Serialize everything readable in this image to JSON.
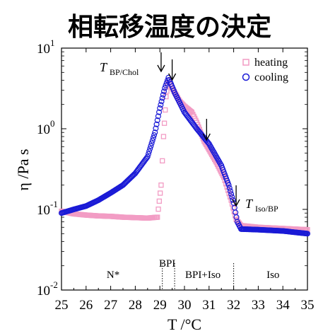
{
  "title": "相転移温度の決定",
  "chart_data": {
    "type": "scatter",
    "xlabel": "T /°C",
    "ylabel": "η /Pa s",
    "xlim": [
      25,
      35
    ],
    "ylim": [
      0.01,
      10
    ],
    "yscale": "log",
    "x_ticks": [
      "25",
      "26",
      "27",
      "28",
      "29",
      "30",
      "31",
      "32",
      "33",
      "34",
      "35"
    ],
    "y_ticks": [
      {
        "base": "10",
        "exp": "1"
      },
      {
        "base": "10",
        "exp": "0"
      },
      {
        "base": "10",
        "exp": "-1"
      },
      {
        "base": "10",
        "exp": "-2"
      }
    ],
    "legend": {
      "position": "top-right"
    },
    "series": [
      {
        "name": "heating",
        "marker": "square",
        "color": "#f29cc4",
        "points": [
          [
            25.0,
            0.095
          ],
          [
            25.5,
            0.088
          ],
          [
            26.0,
            0.085
          ],
          [
            26.5,
            0.083
          ],
          [
            27.0,
            0.082
          ],
          [
            27.5,
            0.08
          ],
          [
            28.0,
            0.079
          ],
          [
            28.5,
            0.078
          ],
          [
            28.9,
            0.08
          ],
          [
            29.05,
            0.2
          ],
          [
            29.15,
            0.8
          ],
          [
            29.25,
            2.5
          ],
          [
            29.35,
            4.0
          ],
          [
            29.5,
            3.2
          ],
          [
            29.8,
            2.2
          ],
          [
            30.0,
            1.9
          ],
          [
            30.3,
            1.6
          ],
          [
            30.5,
            1.2
          ],
          [
            30.8,
            0.7
          ],
          [
            31.0,
            0.55
          ],
          [
            31.3,
            0.38
          ],
          [
            31.6,
            0.25
          ],
          [
            31.9,
            0.13
          ],
          [
            32.1,
            0.075
          ],
          [
            32.3,
            0.063
          ],
          [
            33.0,
            0.06
          ],
          [
            34.0,
            0.058
          ],
          [
            35.0,
            0.056
          ]
        ]
      },
      {
        "name": "cooling",
        "marker": "circle",
        "color": "#1a1ad6",
        "points": [
          [
            25.0,
            0.09
          ],
          [
            25.5,
            0.1
          ],
          [
            26.0,
            0.11
          ],
          [
            26.5,
            0.13
          ],
          [
            27.0,
            0.16
          ],
          [
            27.5,
            0.2
          ],
          [
            28.0,
            0.28
          ],
          [
            28.5,
            0.45
          ],
          [
            28.8,
            0.9
          ],
          [
            29.0,
            1.8
          ],
          [
            29.2,
            3.2
          ],
          [
            29.35,
            4.3
          ],
          [
            29.6,
            2.8
          ],
          [
            30.0,
            1.6
          ],
          [
            30.5,
            1.0
          ],
          [
            31.0,
            0.65
          ],
          [
            31.5,
            0.35
          ],
          [
            31.8,
            0.2
          ],
          [
            32.0,
            0.12
          ],
          [
            32.15,
            0.07
          ],
          [
            32.3,
            0.057
          ],
          [
            33.0,
            0.056
          ],
          [
            34.0,
            0.054
          ],
          [
            35.0,
            0.05
          ]
        ]
      }
    ],
    "annotations": {
      "tbp": {
        "var": "T",
        "sub": "BP/Chol"
      },
      "tiso": {
        "var": "T",
        "sub": "Iso/BP"
      },
      "arrows_at_T": [
        29.05,
        29.5,
        30.9,
        32.1
      ]
    },
    "regions": [
      {
        "label": "N*"
      },
      {
        "label": "BPI"
      },
      {
        "label": "BPI+Iso"
      },
      {
        "label": "Iso"
      }
    ],
    "region_boundaries_T": [
      29.1,
      29.6,
      32.0
    ]
  }
}
